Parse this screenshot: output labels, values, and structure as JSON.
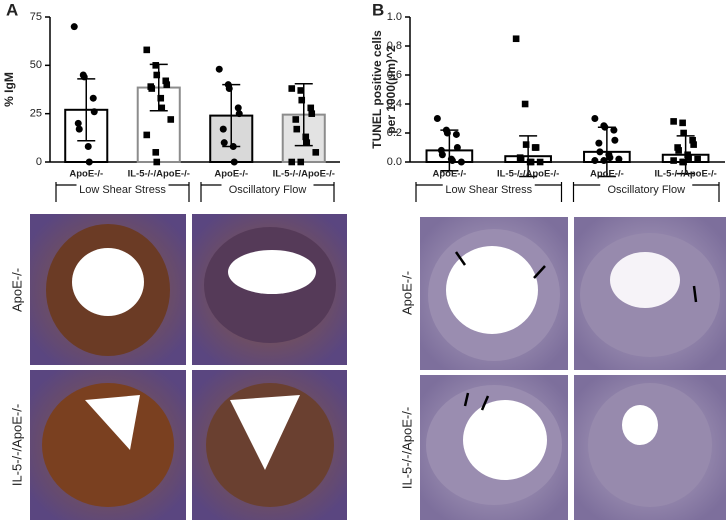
{
  "chart_data": [
    {
      "type": "bar",
      "panel": "A",
      "ylabel": "% IgM",
      "categories": [
        "ApoE-/-",
        "IL-5-/-/ApoE-/-",
        "ApoE-/-",
        "IL-5-/-/ApoE-/-"
      ],
      "groups": [
        "Low Shear Stress",
        "Oscillatory Flow"
      ],
      "values": [
        27,
        38.5,
        24,
        24.5
      ],
      "errors": [
        16,
        12,
        16,
        16
      ],
      "points": [
        [
          70,
          45,
          44,
          33,
          26,
          20,
          17,
          8,
          0
        ],
        [
          58,
          50,
          45,
          42,
          40,
          39,
          38,
          33,
          28,
          22,
          14,
          5,
          0
        ],
        [
          48,
          40,
          38,
          28,
          25,
          17,
          10,
          8,
          0
        ],
        [
          38,
          37,
          32,
          28,
          25,
          22,
          17,
          13,
          10,
          5,
          0,
          0
        ]
      ],
      "fills": [
        "#ffffff",
        "#ffffff",
        "#d9d9d9",
        "#e3e3e3"
      ],
      "edges": [
        "#000000",
        "#8c8c8c",
        "#000000",
        "#8c8c8c"
      ],
      "markers": [
        "circle",
        "square",
        "circle",
        "square"
      ],
      "ylim": [
        0,
        75
      ],
      "yticks": [
        0,
        25,
        50,
        75
      ]
    },
    {
      "type": "bar",
      "panel": "B",
      "ylabel": "TUNEL positive cells per 1000(μm)^2",
      "categories": [
        "ApoE-/-",
        "IL-5-/-/ApoE-/-",
        "ApoE-/-",
        "IL-5-/-/ApoE-/-"
      ],
      "groups": [
        "Low Shear Stress",
        "Oscillatory Flow"
      ],
      "values": [
        0.08,
        0.04,
        0.07,
        0.05
      ],
      "errors": [
        0.14,
        0.14,
        0.17,
        0.13
      ],
      "points": [
        [
          0.3,
          0.22,
          0.2,
          0.19,
          0.1,
          0.08,
          0.05,
          0.02,
          0.01,
          0
        ],
        [
          0.85,
          0.4,
          0.12,
          0.1,
          0.1,
          0.03,
          0.02,
          0,
          0,
          0
        ],
        [
          0.3,
          0.25,
          0.24,
          0.22,
          0.15,
          0.13,
          0.07,
          0.05,
          0.03,
          0.02,
          0.01,
          0.01
        ],
        [
          0.28,
          0.27,
          0.2,
          0.15,
          0.12,
          0.1,
          0.08,
          0.05,
          0.03,
          0.02,
          0.01,
          0,
          0
        ]
      ],
      "fills": [
        "#ffffff",
        "#ffffff",
        "#ffffff",
        "#ffffff"
      ],
      "edges": [
        "#000000",
        "#000000",
        "#000000",
        "#000000"
      ],
      "markers": [
        "circle",
        "square",
        "circle",
        "square"
      ],
      "ylim": [
        0,
        1
      ],
      "yticks": [
        {
          "value": 0,
          "label": "0.0"
        },
        {
          "value": 0.2,
          "label": "0.2"
        },
        {
          "value": 0.4,
          "label": "0.4"
        },
        {
          "value": 0.6,
          "label": "0.6"
        },
        {
          "value": 0.8,
          "label": "0.8"
        },
        {
          "value": 1,
          "label": "1.0"
        }
      ]
    }
  ],
  "images": {
    "rows_a": [
      "ApoE-/-",
      "IL-5-/-/ApoE-/-"
    ],
    "rows_b": [
      "ApoE-/-",
      "IL-5-/-/ApoE-/-"
    ]
  }
}
